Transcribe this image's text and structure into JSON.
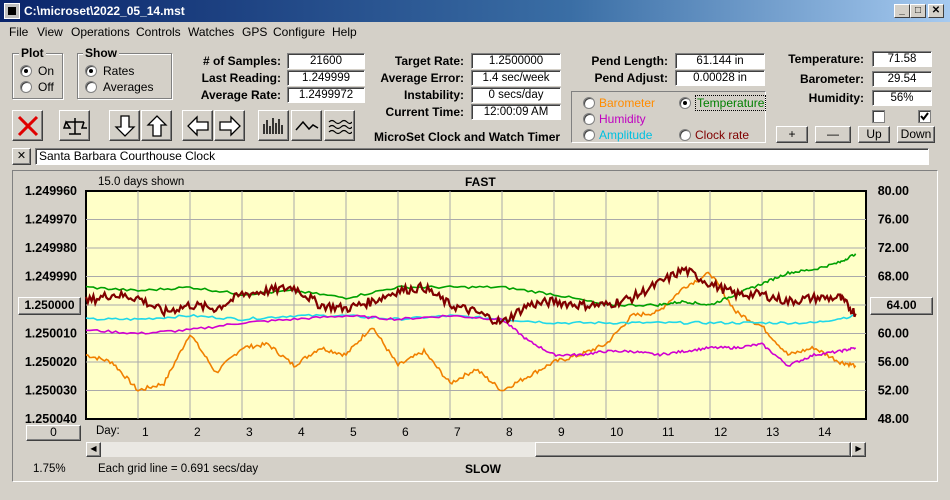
{
  "window": {
    "title": "C:\\microset\\2022_05_14.mst"
  },
  "menu": [
    "File",
    "View",
    "Operations",
    "Controls",
    "Watches",
    "GPS",
    "Configure",
    "Help"
  ],
  "plot": {
    "title": "Plot",
    "on": "On",
    "off": "Off",
    "selected": "On"
  },
  "show": {
    "title": "Show",
    "rates": "Rates",
    "averages": "Averages",
    "selected": "Rates"
  },
  "stats": {
    "samples_label": "# of Samples:",
    "samples": "21600",
    "last_label": "Last Reading:",
    "last": "1.249999",
    "avg_label": "Average Rate:",
    "avg": "1.2499972",
    "target_label": "Target Rate:",
    "target": "1.2500000",
    "error_label": "Average Error:",
    "error": "1.4 sec/week",
    "instab_label": "Instability:",
    "instab": "0 secs/day",
    "time_label": "Current Time:",
    "time": "12:00:09 AM",
    "pend_len_label": "Pend Length:",
    "pend_len": "61.144 in",
    "pend_adj_label": "Pend Adjust:",
    "pend_adj": "0.00028 in",
    "temp_label": "Temperature:",
    "temp": "71.58",
    "baro_label": "Barometer:",
    "baro": "29.54",
    "hum_label": "Humidity:",
    "hum": "56%"
  },
  "app_title": "MicroSet Clock and Watch Timer",
  "sensors": {
    "barometer": "Barometer",
    "temperature": "Temperature",
    "humidity": "Humidity",
    "amplitude": "Amplitude",
    "clock_rate": "Clock rate",
    "selected": "Temperature",
    "colors": {
      "barometer": "#ff8c00",
      "temperature": "#008000",
      "humidity": "#c000c0",
      "amplitude": "#00c0e0",
      "clock_rate": "#800000"
    }
  },
  "side_buttons": {
    "plus": "+",
    "minus": "—",
    "up": "Up",
    "down": "Down"
  },
  "side_checks": {
    "left": false,
    "right": true
  },
  "clock_name": "Santa Barbara Courthouse Clock",
  "close_x": "✕",
  "chart_data": {
    "type": "line",
    "days_shown": "15.0 days shown",
    "top_label": "FAST",
    "bottom_label": "SLOW",
    "grid_note": "Each grid line = 0.691 secs/day",
    "percent": "1.75%",
    "left_button": "1.250000",
    "right_button": "64.00",
    "bottom_button": "0",
    "xlabel": "Day:",
    "x_ticks": [
      1,
      2,
      3,
      4,
      5,
      6,
      7,
      8,
      9,
      10,
      11,
      12,
      13,
      14
    ],
    "y_left_ticks": [
      "1.249960",
      "1.249970",
      "1.249980",
      "1.249990",
      "",
      "1.250010",
      "1.250020",
      "1.250030",
      "1.250040"
    ],
    "y_left_range": [
      1.24996,
      1.25004
    ],
    "y_right_ticks": [
      "80.00",
      "76.00",
      "72.00",
      "68.00",
      "",
      "60.00",
      "56.00",
      "52.00",
      "48.00"
    ],
    "y_right_range": [
      48,
      80
    ],
    "x_range": [
      0,
      15
    ],
    "series": [
      {
        "name": "Clock rate",
        "color": "#800000",
        "x": [
          0,
          0.5,
          1,
          1.5,
          2,
          2.5,
          3,
          3.5,
          4,
          4.5,
          5,
          5.5,
          6,
          6.5,
          7,
          7.5,
          8,
          8.5,
          9,
          9.5,
          10,
          10.5,
          11,
          11.5,
          12,
          12.5,
          13,
          13.5,
          14,
          14.5,
          14.8
        ],
        "y": [
          64.5,
          65.5,
          65,
          63,
          64,
          63.5,
          65.5,
          66,
          66.5,
          64,
          63.5,
          64.5,
          66,
          66.5,
          64,
          63,
          61.5,
          64,
          64.5,
          64,
          64,
          65,
          67,
          69,
          67,
          65.5,
          65.5,
          64.5,
          65,
          65,
          62.8
        ]
      },
      {
        "name": "Temperature",
        "color": "#00a000",
        "x": [
          0,
          1,
          2,
          3,
          4,
          5,
          6,
          7,
          8,
          9,
          10,
          11,
          11.5,
          12,
          12.5,
          13,
          13.5,
          14,
          14.5,
          14.8
        ],
        "y": [
          66.5,
          66,
          66.5,
          65.5,
          66,
          65,
          66.5,
          66.5,
          66.5,
          65.5,
          64,
          64,
          64.5,
          64,
          65.5,
          67,
          68.5,
          69,
          70,
          71.2
        ]
      },
      {
        "name": "Humidity",
        "color": "#d000d0",
        "x": [
          0,
          1,
          2,
          3,
          4,
          5,
          6,
          7,
          8,
          8.5,
          9,
          9.5,
          10,
          10.5,
          11,
          11.5,
          12,
          12.5,
          13,
          13.5,
          14,
          14.5,
          14.8
        ],
        "y": [
          60.5,
          60,
          60.5,
          61.5,
          62,
          62.5,
          62,
          62.5,
          62,
          59,
          57,
          57,
          57.5,
          57.5,
          57,
          57.5,
          58,
          58,
          58.5,
          55.5,
          57,
          57.5,
          58
        ]
      },
      {
        "name": "Amplitude",
        "color": "#20d8e8",
        "x": [
          0,
          1,
          2,
          3,
          4,
          5,
          6,
          7,
          8,
          9,
          10,
          11,
          12,
          13,
          14,
          14.8
        ],
        "y": [
          62,
          62,
          62.5,
          62,
          62.5,
          62.5,
          62,
          62.5,
          62,
          61.5,
          61.5,
          61.5,
          61.5,
          61.5,
          61.5,
          62.5
        ]
      },
      {
        "name": "Barometer",
        "color": "#f08000",
        "x": [
          0,
          0.5,
          1,
          1.5,
          2,
          2.5,
          3,
          3.5,
          4,
          4.5,
          5,
          5.5,
          6,
          6.5,
          7,
          7.5,
          8,
          8.5,
          9,
          9.5,
          10,
          10.5,
          11,
          11.5,
          12,
          12.5,
          13,
          13.5,
          14,
          14.5,
          14.8
        ],
        "y": [
          57,
          56,
          52,
          53,
          60,
          54.5,
          58,
          58.5,
          55.5,
          58,
          57,
          61,
          55.5,
          57.5,
          53,
          55,
          52,
          54,
          56,
          57,
          58.5,
          62.5,
          63,
          66.5,
          68.5,
          63,
          61,
          57,
          58,
          56,
          55.5
        ]
      }
    ]
  }
}
